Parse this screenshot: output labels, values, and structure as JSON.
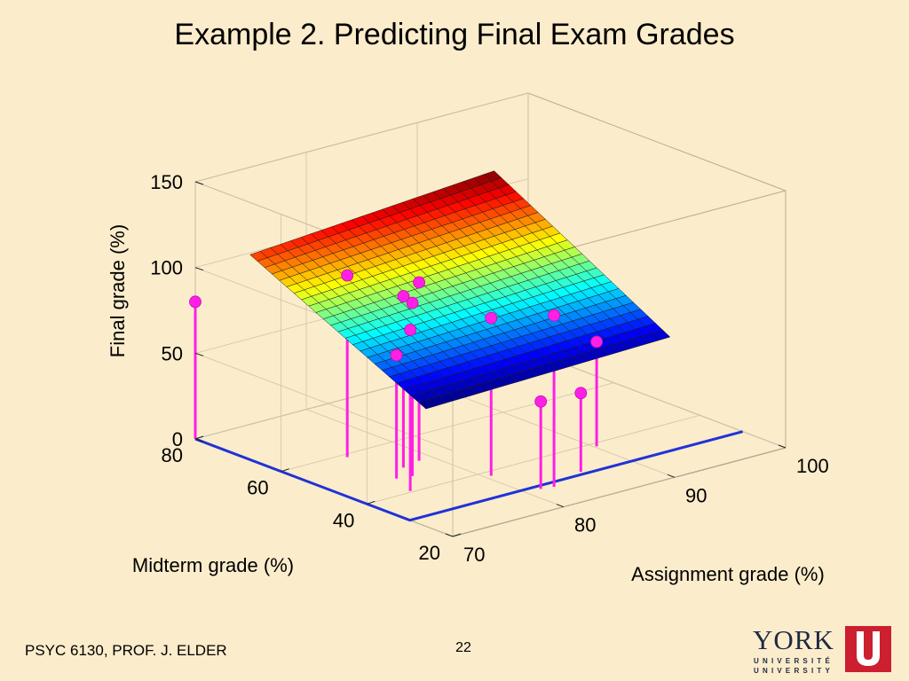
{
  "slide": {
    "title": "Example 2.  Predicting Final Exam Grades",
    "footer": "PSYC 6130, PROF. J. ELDER",
    "page_number": "22",
    "logo": {
      "word": "YORK",
      "sub1": "UNIVERSITÉ",
      "sub2": "UNIVERSITY",
      "accent": "#cc1f2f",
      "text_color": "#1e2a44"
    }
  },
  "chart_data": {
    "type": "surface3d",
    "title": "",
    "xlabel": "Assignment grade (%)",
    "ylabel": "Midterm grade (%)",
    "zlabel": "Final grade (%)",
    "xlim": [
      70,
      100
    ],
    "ylim": [
      20,
      80
    ],
    "zlim": [
      0,
      150
    ],
    "x_ticks": [
      70,
      80,
      90,
      100
    ],
    "y_ticks": [
      20,
      40,
      60,
      80
    ],
    "z_ticks": [
      0,
      50,
      100,
      150
    ],
    "x_tick_labels": [
      "70",
      "80",
      "90",
      "100"
    ],
    "y_tick_labels": [
      "20",
      "40",
      "60",
      "80"
    ],
    "z_tick_labels": [
      "0",
      "50",
      "100",
      "150"
    ],
    "grid": true,
    "colormap": "jet",
    "surface": {
      "x_range": [
        73,
        95
      ],
      "y_range": [
        34,
        75
      ],
      "z_corners": {
        "xmin_ymin": 56,
        "xmax_ymin": 60,
        "xmin_ymax": 107,
        "xmax_ymax": 118
      },
      "grid_steps": 24
    },
    "regression_line": {
      "color": "#1f33d6",
      "points": [
        [
          70,
          80,
          0
        ],
        [
          70,
          30,
          0
        ],
        [
          100,
          30,
          0
        ]
      ]
    },
    "points": [
      {
        "x": 70.0,
        "y": 80.0,
        "z": 80
      },
      {
        "x": 74.1,
        "y": 40.5,
        "z": 94
      },
      {
        "x": 75.1,
        "y": 46.3,
        "z": 72
      },
      {
        "x": 76.3,
        "y": 45.7,
        "z": 101
      },
      {
        "x": 75.5,
        "y": 58.8,
        "z": 106
      },
      {
        "x": 77.0,
        "y": 49.6,
        "z": 100
      },
      {
        "x": 78.8,
        "y": 50.6,
        "z": 104
      },
      {
        "x": 80.5,
        "y": 38.2,
        "z": 92
      },
      {
        "x": 82.3,
        "y": 28.2,
        "z": 100
      },
      {
        "x": 81.3,
        "y": 28.7,
        "z": 51
      },
      {
        "x": 85.8,
        "y": 31.0,
        "z": 46
      },
      {
        "x": 90.2,
        "y": 38.7,
        "z": 61
      }
    ],
    "marker_color": "#ff1fe6"
  }
}
